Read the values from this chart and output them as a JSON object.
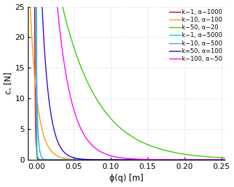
{
  "xlabel": "ϕ(q) [m]",
  "ylabel": "c, [N]",
  "xlim": [
    -0.012,
    0.255
  ],
  "ylim": [
    0,
    25
  ],
  "xticks": [
    0.0,
    0.05,
    0.1,
    0.15,
    0.2,
    0.25
  ],
  "yticks": [
    0,
    5,
    10,
    15,
    20,
    25
  ],
  "colors": [
    "#cc0000",
    "#ff9900",
    "#33cc00",
    "#00cccc",
    "#3399ff",
    "#3300cc",
    "#ff00ff"
  ],
  "ks": [
    1,
    10,
    50,
    1,
    10,
    50,
    100
  ],
  "alphas": [
    1000,
    100,
    20,
    5000,
    500,
    100,
    50
  ],
  "legend_labels": [
    "k−1, α−1000",
    "k−10, α−100",
    "k−50, α−20",
    "k−1, α−5000",
    "k−10, α−500",
    "k=50, α=100",
    "k−100, α−50"
  ],
  "grid_color": "#cccccc",
  "linewidth": 1.0
}
